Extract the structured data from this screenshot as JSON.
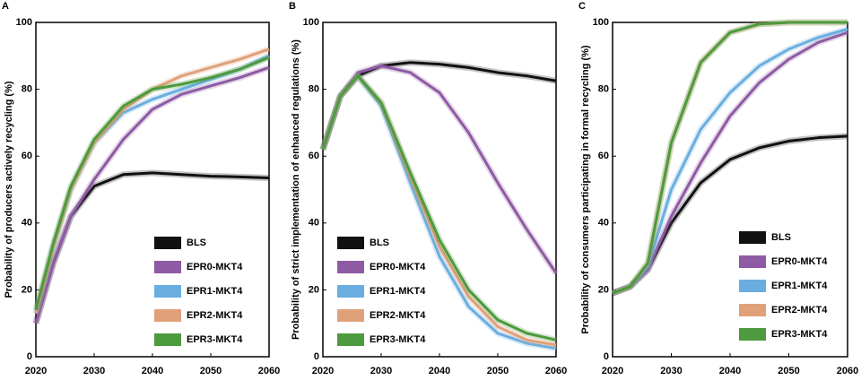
{
  "chart_data": [
    {
      "type": "line",
      "panel": "A",
      "y_label": "Probability of producers actively recycling (%)",
      "x": [
        2020,
        2023,
        2026,
        2030,
        2035,
        2040,
        2045,
        2050,
        2055,
        2060
      ],
      "xlim": [
        2020,
        2060
      ],
      "xticks": [
        2020,
        2030,
        2040,
        2050,
        2060
      ],
      "ylim": [
        0,
        100
      ],
      "yticks": [
        0,
        20,
        40,
        60,
        80,
        100
      ],
      "series": [
        {
          "name": "BLS",
          "color": "#111111",
          "values": [
            10,
            28,
            42,
            51,
            54.5,
            55,
            54.5,
            54,
            53.8,
            53.5
          ]
        },
        {
          "name": "EPR0-MKT4",
          "color": "#8e5aa3",
          "values": [
            10,
            28,
            42,
            53,
            65,
            74,
            78.5,
            81,
            83.5,
            86.5
          ]
        },
        {
          "name": "EPR1-MKT4",
          "color": "#6aaee0",
          "values": [
            13,
            33,
            50,
            64,
            73,
            77,
            80,
            83,
            86,
            90
          ]
        },
        {
          "name": "EPR2-MKT4",
          "color": "#e0a07a",
          "values": [
            13,
            33,
            50,
            64,
            74,
            80,
            84,
            86.5,
            89,
            92
          ]
        },
        {
          "name": "EPR3-MKT4",
          "color": "#4e9a3e",
          "values": [
            14,
            34,
            51,
            65,
            75,
            80,
            81.5,
            83.5,
            86,
            89.5
          ]
        }
      ]
    },
    {
      "type": "line",
      "panel": "B",
      "y_label": "Probability of strict implementation of enhanced regulations (%)",
      "x": [
        2020,
        2023,
        2026,
        2030,
        2035,
        2040,
        2045,
        2050,
        2055,
        2060
      ],
      "xlim": [
        2020,
        2060
      ],
      "xticks": [
        2020,
        2030,
        2040,
        2050,
        2060
      ],
      "ylim": [
        0,
        100
      ],
      "yticks": [
        0,
        20,
        40,
        60,
        80,
        100
      ],
      "series": [
        {
          "name": "BLS",
          "color": "#111111",
          "values": [
            62,
            78,
            84,
            87,
            88,
            87.5,
            86.5,
            85,
            84,
            82.5
          ]
        },
        {
          "name": "EPR0-MKT4",
          "color": "#8e5aa3",
          "values": [
            62,
            78,
            85,
            87,
            85,
            79,
            67,
            52,
            38,
            25
          ]
        },
        {
          "name": "EPR1-MKT4",
          "color": "#6aaee0",
          "values": [
            62,
            78,
            84,
            75,
            52,
            30,
            15,
            7,
            4,
            2.5
          ]
        },
        {
          "name": "EPR2-MKT4",
          "color": "#e0a07a",
          "values": [
            62,
            78,
            84,
            76,
            54,
            33,
            18,
            9,
            5,
            3.5
          ]
        },
        {
          "name": "EPR3-MKT4",
          "color": "#4e9a3e",
          "values": [
            62,
            78,
            84,
            76,
            55,
            35,
            20,
            11,
            7,
            5
          ]
        }
      ]
    },
    {
      "type": "line",
      "panel": "C",
      "y_label": "Probability of consumers participating in formal recycling (%)",
      "x": [
        2020,
        2023,
        2026,
        2030,
        2035,
        2040,
        2045,
        2050,
        2055,
        2060
      ],
      "xlim": [
        2020,
        2060
      ],
      "xticks": [
        2020,
        2030,
        2040,
        2050,
        2060
      ],
      "ylim": [
        0,
        100
      ],
      "yticks": [
        0,
        20,
        40,
        60,
        80,
        100
      ],
      "series": [
        {
          "name": "BLS",
          "color": "#111111",
          "values": [
            19,
            21,
            26,
            40,
            52,
            59,
            62.5,
            64.5,
            65.5,
            66
          ]
        },
        {
          "name": "EPR0-MKT4",
          "color": "#8e5aa3",
          "values": [
            19,
            21,
            26,
            42,
            58,
            72,
            82,
            89,
            94,
            97
          ]
        },
        {
          "name": "EPR1-MKT4",
          "color": "#6aaee0",
          "values": [
            19,
            21,
            27,
            50,
            68,
            79,
            87,
            92,
            95.5,
            98
          ]
        },
        {
          "name": "EPR2-MKT4",
          "color": "#e0a07a",
          "values": [
            19,
            21,
            28,
            64,
            88,
            97,
            99.5,
            100,
            100,
            100
          ]
        },
        {
          "name": "EPR3-MKT4",
          "color": "#4e9a3e",
          "values": [
            19,
            21,
            28,
            64,
            88,
            97,
            99.5,
            100,
            100,
            100
          ]
        }
      ]
    }
  ]
}
